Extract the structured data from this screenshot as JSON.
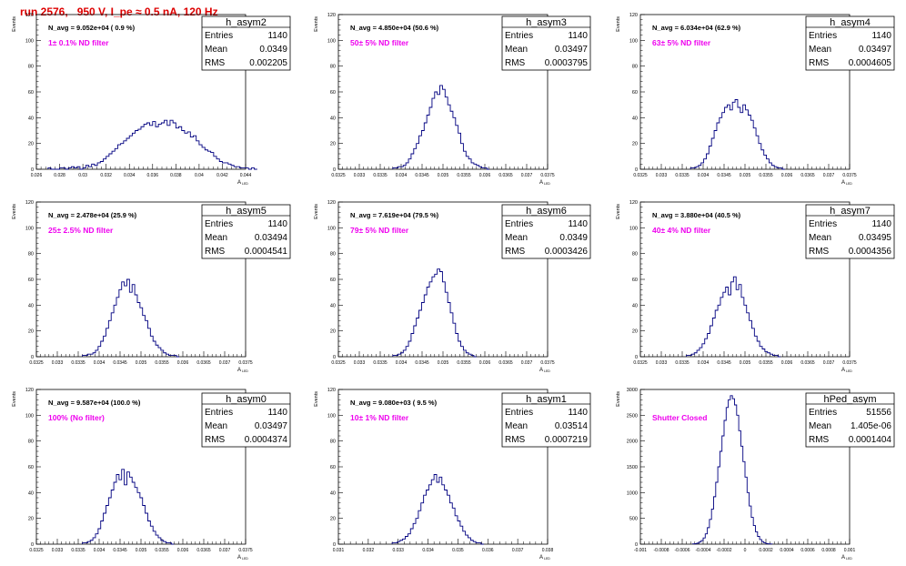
{
  "page": {
    "title": "run 2576,   950 V, I_pe ≈ 0.5 nA, 120 Hz"
  },
  "colors": {
    "histogram_line": "#000080",
    "annotation_magenta": "#ee00ee",
    "title_red": "#dd0000",
    "axis": "#000000"
  },
  "chart_data": [
    {
      "type": "histogram",
      "name": "h_asym2",
      "stats": {
        "entries": "1140",
        "mean": "0.0349",
        "rms": "0.002205"
      },
      "navg_label": "N_avg = 9.052e+04 ( 0.9 %)",
      "filter_label": "1± 0.1% ND filter",
      "ylabel": "Events",
      "xlabel": "A_LED",
      "xlim": [
        0.026,
        0.044
      ],
      "ylim": [
        0,
        120
      ],
      "xticks": [
        "0.026",
        "0.028",
        "0.03",
        "0.032",
        "0.034",
        "0.036",
        "0.038",
        "0.04",
        "0.042",
        "0.044"
      ],
      "yticks": [
        "0",
        "20",
        "40",
        "60",
        "80",
        "100",
        "120"
      ],
      "bin_start": 0.027,
      "bin_width": 0.00025,
      "counts": [
        1,
        0,
        0,
        0,
        1,
        1,
        0,
        1,
        2,
        1,
        2,
        0,
        1,
        3,
        2,
        4,
        3,
        5,
        6,
        8,
        10,
        12,
        14,
        16,
        19,
        20,
        22,
        24,
        26,
        28,
        30,
        31,
        33,
        35,
        36,
        34,
        37,
        33,
        35,
        36,
        38,
        34,
        38,
        36,
        32,
        33,
        30,
        28,
        29,
        25,
        26,
        22,
        19,
        17,
        15,
        14,
        13,
        10,
        8,
        6,
        5,
        5,
        4,
        3,
        2,
        2,
        1,
        1,
        1,
        0,
        1,
        0
      ]
    },
    {
      "type": "histogram",
      "name": "h_asym3",
      "stats": {
        "entries": "1140",
        "mean": "0.03497",
        "rms": "0.0003795"
      },
      "navg_label": "N_avg = 4.850e+04 (50.6 %)",
      "filter_label": "50± 5% ND filter",
      "ylabel": "Events",
      "xlabel": "A_LED",
      "xlim": [
        0.0325,
        0.0375
      ],
      "ylim": [
        0,
        120
      ],
      "xticks": [
        "0.0325",
        "0.033",
        "0.0335",
        "0.034",
        "0.0345",
        "0.035",
        "0.0355",
        "0.036",
        "0.0365",
        "0.037",
        "0.0375"
      ],
      "yticks": [
        "0",
        "20",
        "40",
        "60",
        "80",
        "100",
        "120"
      ],
      "bin_start": 0.0338,
      "bin_width": 6.25e-05,
      "counts": [
        1,
        1,
        2,
        2,
        3,
        5,
        8,
        12,
        16,
        20,
        26,
        30,
        36,
        42,
        48,
        55,
        60,
        58,
        65,
        62,
        56,
        50,
        45,
        40,
        34,
        28,
        20,
        14,
        10,
        8,
        5,
        4,
        3,
        2,
        1,
        1,
        0
      ]
    },
    {
      "type": "histogram",
      "name": "h_asym4",
      "stats": {
        "entries": "1140",
        "mean": "0.03497",
        "rms": "0.0004605"
      },
      "navg_label": "N_avg = 6.034e+04 (62.9 %)",
      "filter_label": "63± 5% ND filter",
      "ylabel": "Events",
      "xlabel": "A_LED",
      "xlim": [
        0.0325,
        0.0375
      ],
      "ylim": [
        0,
        120
      ],
      "xticks": [
        "0.0325",
        "0.033",
        "0.0335",
        "0.034",
        "0.0345",
        "0.035",
        "0.0355",
        "0.036",
        "0.0365",
        "0.037",
        "0.0375"
      ],
      "yticks": [
        "0",
        "20",
        "40",
        "60",
        "80",
        "100",
        "120"
      ],
      "bin_start": 0.0337,
      "bin_width": 6.25e-05,
      "counts": [
        1,
        1,
        2,
        3,
        5,
        8,
        12,
        18,
        24,
        30,
        36,
        40,
        44,
        48,
        50,
        46,
        52,
        54,
        48,
        44,
        50,
        46,
        42,
        38,
        32,
        26,
        20,
        15,
        11,
        8,
        5,
        3,
        2,
        1,
        1,
        0
      ]
    },
    {
      "type": "histogram",
      "name": "h_asym5",
      "stats": {
        "entries": "1140",
        "mean": "0.03494",
        "rms": "0.0004541"
      },
      "navg_label": "N_avg = 2.478e+04 (25.9 %)",
      "filter_label": "25± 2.5% ND filter",
      "ylabel": "Events",
      "xlabel": "A_LED",
      "xlim": [
        0.0325,
        0.0375
      ],
      "ylim": [
        0,
        120
      ],
      "xticks": [
        "0.0325",
        "0.033",
        "0.0335",
        "0.034",
        "0.0345",
        "0.035",
        "0.0355",
        "0.036",
        "0.0365",
        "0.037",
        "0.0375"
      ],
      "yticks": [
        "0",
        "20",
        "40",
        "60",
        "80",
        "100",
        "120"
      ],
      "bin_start": 0.0336,
      "bin_width": 6.25e-05,
      "counts": [
        1,
        1,
        2,
        2,
        3,
        5,
        8,
        12,
        16,
        22,
        28,
        34,
        40,
        46,
        52,
        58,
        55,
        60,
        50,
        56,
        48,
        42,
        38,
        32,
        28,
        22,
        16,
        12,
        9,
        7,
        5,
        3,
        2,
        1,
        1,
        1,
        0
      ]
    },
    {
      "type": "histogram",
      "name": "h_asym6",
      "stats": {
        "entries": "1140",
        "mean": "0.0349",
        "rms": "0.0003426"
      },
      "navg_label": "N_avg = 7.619e+04 (79.5 %)",
      "filter_label": "79± 5% ND filter",
      "ylabel": "Events",
      "xlabel": "A_LED",
      "xlim": [
        0.0325,
        0.0375
      ],
      "ylim": [
        0,
        120
      ],
      "xticks": [
        "0.0325",
        "0.033",
        "0.0335",
        "0.034",
        "0.0345",
        "0.035",
        "0.0355",
        "0.036",
        "0.0365",
        "0.037",
        "0.0375"
      ],
      "yticks": [
        "0",
        "20",
        "40",
        "60",
        "80",
        "100",
        "120"
      ],
      "bin_start": 0.0338,
      "bin_width": 6.25e-05,
      "counts": [
        1,
        1,
        2,
        3,
        5,
        8,
        12,
        18,
        24,
        30,
        36,
        42,
        48,
        54,
        58,
        62,
        64,
        68,
        66,
        58,
        50,
        42,
        34,
        26,
        18,
        12,
        8,
        5,
        3,
        2,
        1,
        0
      ]
    },
    {
      "type": "histogram",
      "name": "h_asym7",
      "stats": {
        "entries": "1140",
        "mean": "0.03495",
        "rms": "0.0004356"
      },
      "navg_label": "N_avg = 3.880e+04 (40.5 %)",
      "filter_label": "40± 4% ND filter",
      "ylabel": "Events",
      "xlabel": "A_LED",
      "xlim": [
        0.0325,
        0.0375
      ],
      "ylim": [
        0,
        120
      ],
      "xticks": [
        "0.0325",
        "0.033",
        "0.0335",
        "0.034",
        "0.0345",
        "0.035",
        "0.0355",
        "0.036",
        "0.0365",
        "0.037",
        "0.0375"
      ],
      "yticks": [
        "0",
        "20",
        "40",
        "60",
        "80",
        "100",
        "120"
      ],
      "bin_start": 0.0336,
      "bin_width": 6.25e-05,
      "counts": [
        1,
        1,
        2,
        3,
        5,
        7,
        10,
        14,
        18,
        24,
        30,
        36,
        40,
        46,
        50,
        54,
        48,
        58,
        62,
        52,
        56,
        46,
        40,
        34,
        28,
        22,
        16,
        12,
        8,
        6,
        4,
        3,
        2,
        1,
        1,
        0
      ]
    },
    {
      "type": "histogram",
      "name": "h_asym0",
      "stats": {
        "entries": "1140",
        "mean": "0.03497",
        "rms": "0.0004374"
      },
      "navg_label": "N_avg = 9.587e+04 (100.0 %)",
      "filter_label": "100% (No filter)",
      "ylabel": "Events",
      "xlabel": "A_LED",
      "xlim": [
        0.0325,
        0.0375
      ],
      "ylim": [
        0,
        120
      ],
      "xticks": [
        "0.0325",
        "0.033",
        "0.0335",
        "0.034",
        "0.0345",
        "0.035",
        "0.0355",
        "0.036",
        "0.0365",
        "0.037",
        "0.0375"
      ],
      "yticks": [
        "0",
        "20",
        "40",
        "60",
        "80",
        "100",
        "120"
      ],
      "bin_start": 0.0336,
      "bin_width": 6.25e-05,
      "counts": [
        1,
        1,
        2,
        3,
        5,
        8,
        12,
        18,
        24,
        30,
        36,
        42,
        48,
        54,
        50,
        58,
        46,
        56,
        52,
        48,
        44,
        40,
        36,
        30,
        24,
        18,
        14,
        10,
        7,
        5,
        3,
        2,
        1,
        1,
        0
      ]
    },
    {
      "type": "histogram",
      "name": "h_asym1",
      "stats": {
        "entries": "1140",
        "mean": "0.03514",
        "rms": "0.0007219"
      },
      "navg_label": "N_avg = 9.080e+03 ( 9.5 %)",
      "filter_label": "10± 1% ND filter",
      "ylabel": "Events",
      "xlabel": "A_LED",
      "xlim": [
        0.031,
        0.038
      ],
      "ylim": [
        0,
        120
      ],
      "xticks": [
        "0.031",
        "0.032",
        "0.033",
        "0.034",
        "0.035",
        "0.036",
        "0.037",
        "0.038"
      ],
      "yticks": [
        "0",
        "20",
        "40",
        "60",
        "80",
        "100",
        "120"
      ],
      "bin_start": 0.0328,
      "bin_width": 8.75e-05,
      "counts": [
        1,
        1,
        2,
        3,
        4,
        6,
        8,
        12,
        16,
        20,
        26,
        32,
        38,
        42,
        46,
        50,
        54,
        48,
        52,
        46,
        42,
        38,
        32,
        28,
        22,
        18,
        14,
        10,
        7,
        5,
        3,
        2,
        1,
        1,
        0
      ]
    },
    {
      "type": "histogram",
      "name": "hPed_asym",
      "stats": {
        "entries": "51556",
        "mean": "1.405e-06",
        "rms": "0.0001404"
      },
      "navg_label": "",
      "filter_label": "Shutter Closed",
      "ylabel": "Events",
      "xlabel": "A_LED",
      "xlim": [
        -0.001,
        0.001
      ],
      "ylim": [
        0,
        3000
      ],
      "xticks": [
        "-0.001",
        "-0.0008",
        "-0.0006",
        "-0.0004",
        "-0.0002",
        "0",
        "0.0002",
        "0.0004",
        "0.0006",
        "0.0008",
        "0.001"
      ],
      "yticks": [
        "0",
        "500",
        "1000",
        "1500",
        "2000",
        "2500",
        "3000"
      ],
      "bin_start": -0.0005,
      "bin_width": 2e-05,
      "counts": [
        5,
        10,
        20,
        40,
        70,
        120,
        200,
        320,
        480,
        680,
        920,
        1200,
        1500,
        1800,
        2100,
        2400,
        2650,
        2800,
        2880,
        2820,
        2700,
        2500,
        2200,
        1900,
        1600,
        1300,
        1000,
        740,
        520,
        360,
        240,
        150,
        90,
        50,
        25,
        12,
        6,
        3
      ]
    }
  ]
}
